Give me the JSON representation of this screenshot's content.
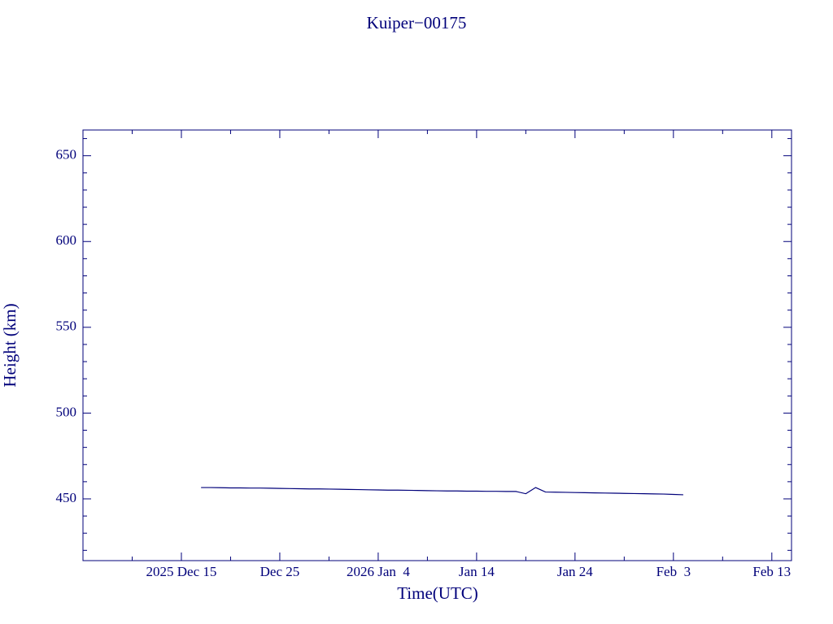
{
  "chart_data": {
    "type": "line",
    "title": "Kuiper−00175",
    "xlabel": "Time(UTC)",
    "ylabel": "Height (km)",
    "color": "#00007a",
    "xlim": [
      "2025-12-05",
      "2026-02-15"
    ],
    "xticks": [
      {
        "value": "2025-12-15",
        "label": "2025 Dec 15"
      },
      {
        "value": "2025-12-25",
        "label": "Dec 25"
      },
      {
        "value": "2026-01-04",
        "label": "2026 Jan  4"
      },
      {
        "value": "2026-01-14",
        "label": "Jan 14"
      },
      {
        "value": "2026-01-24",
        "label": "Jan 24"
      },
      {
        "value": "2026-02-03",
        "label": "Feb  3"
      },
      {
        "value": "2026-02-13",
        "label": "Feb 13"
      }
    ],
    "xminorticks": [
      "2025-12-10",
      "2025-12-20",
      "2025-12-30",
      "2026-01-09",
      "2026-01-19",
      "2026-01-29",
      "2026-02-08"
    ],
    "ylim": [
      414,
      665
    ],
    "yticks": [
      450,
      500,
      550,
      600,
      650
    ],
    "yminorticks": [
      420,
      430,
      440,
      460,
      470,
      480,
      490,
      510,
      520,
      530,
      540,
      560,
      570,
      580,
      590,
      610,
      620,
      630,
      640,
      660
    ],
    "x": [
      "2025-12-17",
      "2025-12-18",
      "2025-12-19",
      "2025-12-20",
      "2025-12-21",
      "2025-12-22",
      "2025-12-23",
      "2025-12-24",
      "2025-12-25",
      "2025-12-26",
      "2025-12-27",
      "2025-12-28",
      "2025-12-29",
      "2025-12-30",
      "2025-12-31",
      "2026-01-01",
      "2026-01-02",
      "2026-01-03",
      "2026-01-04",
      "2026-01-05",
      "2026-01-06",
      "2026-01-07",
      "2026-01-08",
      "2026-01-09",
      "2026-01-10",
      "2026-01-11",
      "2026-01-12",
      "2026-01-13",
      "2026-01-14",
      "2026-01-15",
      "2026-01-16",
      "2026-01-17",
      "2026-01-18",
      "2026-01-19",
      "2026-01-20",
      "2026-01-21",
      "2026-01-22",
      "2026-01-23",
      "2026-01-24",
      "2026-01-25",
      "2026-01-26",
      "2026-01-27",
      "2026-01-28",
      "2026-01-29",
      "2026-01-30",
      "2026-01-31",
      "2026-02-01",
      "2026-02-02",
      "2026-02-03",
      "2026-02-04"
    ],
    "series": [
      {
        "name": "Height",
        "values": [
          456.6,
          456.6,
          456.5,
          456.4,
          456.4,
          456.3,
          456.3,
          456.2,
          456.1,
          456.0,
          455.9,
          455.8,
          455.8,
          455.7,
          455.6,
          455.5,
          455.4,
          455.3,
          455.2,
          455.1,
          455.1,
          455.0,
          454.9,
          454.8,
          454.7,
          454.6,
          454.6,
          454.5,
          454.5,
          454.4,
          454.4,
          454.3,
          454.3,
          453.0,
          456.6,
          454.0,
          453.9,
          453.8,
          453.7,
          453.6,
          453.5,
          453.4,
          453.3,
          453.2,
          453.1,
          453.0,
          452.9,
          452.8,
          452.6,
          452.4
        ]
      }
    ]
  }
}
